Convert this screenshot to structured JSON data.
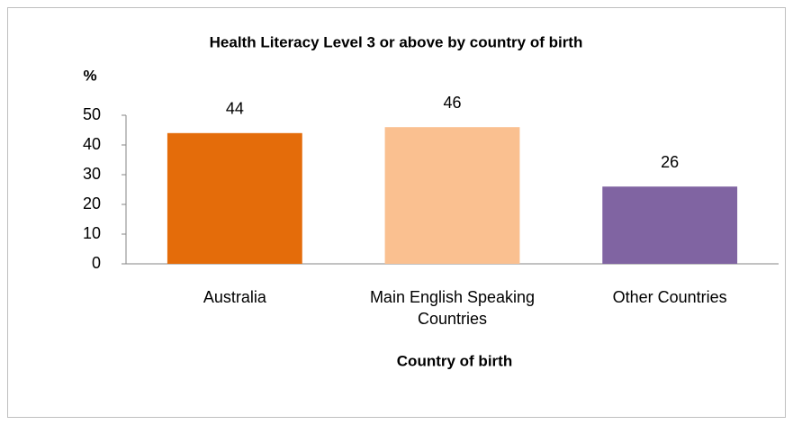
{
  "chart_data": {
    "type": "bar",
    "title": "Health Literacy Level 3 or above by country of birth",
    "y_label": "%",
    "x_label": "Country of birth",
    "categories": [
      "Australia",
      "Main English Speaking Countries",
      "Other Countries"
    ],
    "values": [
      44,
      46,
      26
    ],
    "colors": [
      "#e46c0a",
      "#fac090",
      "#8064a2"
    ],
    "ylim": [
      0,
      50
    ],
    "yticks": [
      0,
      10,
      20,
      30,
      40,
      50
    ],
    "grid": false
  }
}
